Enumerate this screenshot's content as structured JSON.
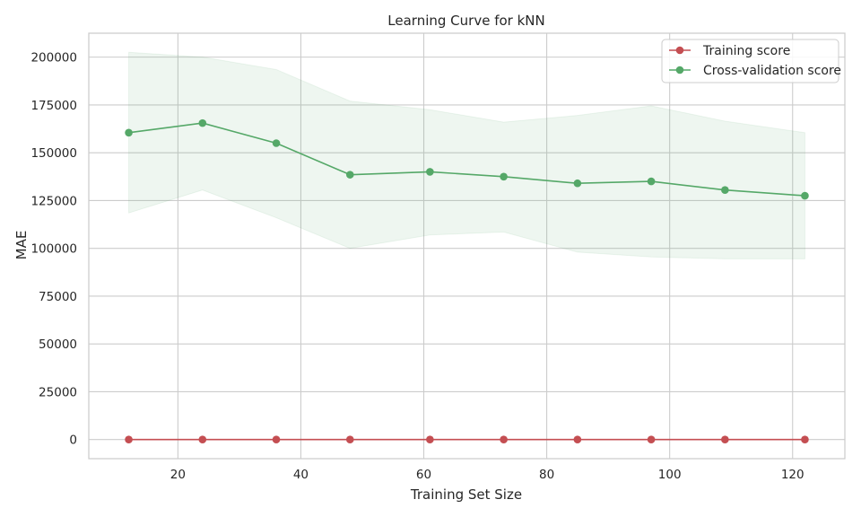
{
  "chart_data": {
    "type": "line",
    "title": "Learning Curve for kNN",
    "xlabel": "Training Set Size",
    "ylabel": "MAE",
    "xlim": [
      5.5,
      128.5
    ],
    "ylim": [
      -10000,
      212500
    ],
    "xticks": [
      20,
      40,
      60,
      80,
      100,
      120
    ],
    "yticks": [
      0,
      25000,
      50000,
      75000,
      100000,
      125000,
      150000,
      175000,
      200000
    ],
    "grid": true,
    "legend_position": "top-right",
    "x": [
      12,
      24,
      36,
      48,
      61,
      73,
      85,
      97,
      109,
      122
    ],
    "series": [
      {
        "name": "Training score",
        "color": "#c44e52",
        "values": [
          0,
          0,
          0,
          0,
          0,
          0,
          0,
          0,
          0,
          0
        ],
        "band_lower": [
          0,
          0,
          0,
          0,
          0,
          0,
          0,
          0,
          0,
          0
        ],
        "band_upper": [
          0,
          0,
          0,
          0,
          0,
          0,
          0,
          0,
          0,
          0
        ]
      },
      {
        "name": "Cross-validation score",
        "color": "#55a868",
        "values": [
          160500,
          165500,
          155000,
          138500,
          140000,
          137500,
          134000,
          135000,
          130500,
          127500
        ],
        "band_lower": [
          118500,
          130500,
          116000,
          100000,
          107000,
          108500,
          98000,
          95500,
          94500,
          94500
        ],
        "band_upper": [
          202500,
          200000,
          193500,
          177000,
          172500,
          166000,
          169500,
          174500,
          166500,
          160500
        ]
      }
    ]
  }
}
